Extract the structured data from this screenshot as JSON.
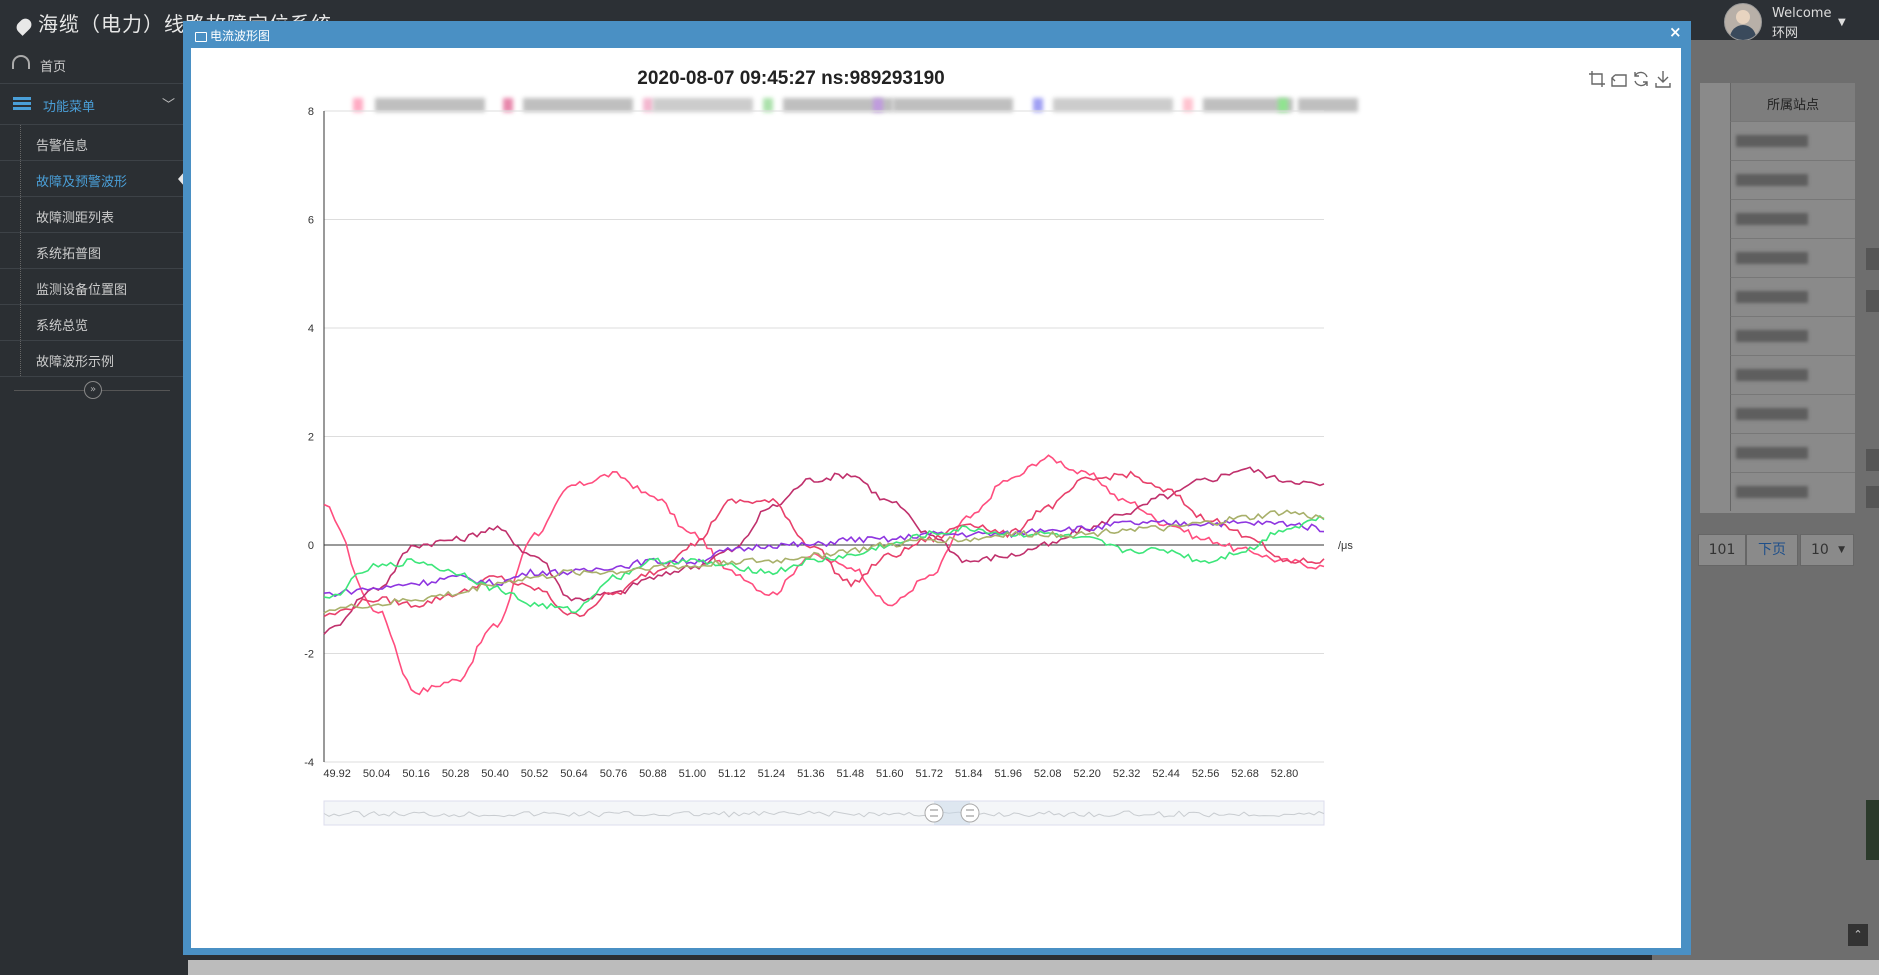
{
  "app": {
    "title": "海缆（电力）线路故障定位系统"
  },
  "user": {
    "welcome": "Welcome",
    "name": "环网"
  },
  "sidebar": {
    "home": "首页",
    "menu": "功能菜单",
    "items": [
      {
        "label": "告警信息"
      },
      {
        "label": "故障及预警波形"
      },
      {
        "label": "故障测距列表"
      },
      {
        "label": "系统拓普图"
      },
      {
        "label": "监测设备位置图"
      },
      {
        "label": "系统总览"
      },
      {
        "label": "故障波形示例"
      }
    ]
  },
  "background_table": {
    "header": "所属站点"
  },
  "pager": {
    "page": "101",
    "next": "下页",
    "page_size": "10"
  },
  "modal": {
    "title": "电流波形图",
    "close": "×"
  },
  "chart_data": {
    "type": "line",
    "title": "2020-08-07 09:45:27  ns:989293190",
    "xlabel": "/μs",
    "ylabel": "",
    "x_ticks": [
      "49.92",
      "50.04",
      "50.16",
      "50.28",
      "50.40",
      "50.52",
      "50.64",
      "50.76",
      "50.88",
      "51.00",
      "51.12",
      "51.24",
      "51.36",
      "51.48",
      "51.60",
      "51.72",
      "51.84",
      "51.96",
      "52.08",
      "52.20",
      "52.32",
      "52.44",
      "52.56",
      "52.68",
      "52.80"
    ],
    "xlim": [
      49.88,
      52.92
    ],
    "ylim": [
      -4,
      8
    ],
    "y_ticks": [
      -4,
      -2,
      0,
      2,
      4,
      6,
      8
    ],
    "grid": true,
    "legend_placement": "top (obscured)",
    "x": [
      49.88,
      50.04,
      50.16,
      50.28,
      50.4,
      50.52,
      50.64,
      50.76,
      50.88,
      51.0,
      51.12,
      51.24,
      51.36,
      51.48,
      51.6,
      51.72,
      51.84,
      51.96,
      52.08,
      52.2,
      52.32,
      52.44,
      52.56,
      52.68,
      52.8,
      52.92
    ],
    "series": [
      {
        "color": "#ff4d7e",
        "values": [
          0.7,
          -1.2,
          -2.7,
          -2.5,
          -1.5,
          0.2,
          1.1,
          1.3,
          0.9,
          0.2,
          -0.5,
          -0.9,
          -0.2,
          -0.4,
          -1.1,
          -0.6,
          0.5,
          1.2,
          1.6,
          1.3,
          0.8,
          0.4,
          0.1,
          -0.1,
          -0.3,
          -0.4
        ]
      },
      {
        "color": "#c0306c",
        "values": [
          -1.6,
          -0.8,
          0.0,
          0.1,
          0.3,
          -0.2,
          -1.0,
          -0.9,
          -0.6,
          -0.4,
          -0.1,
          0.7,
          1.2,
          1.3,
          0.8,
          0.2,
          -0.3,
          -0.2,
          0.0,
          0.3,
          0.6,
          0.9,
          1.2,
          1.4,
          1.2,
          1.1
        ]
      },
      {
        "color": "#e8406a",
        "values": [
          -1.3,
          -1.0,
          -1.1,
          -0.9,
          -0.6,
          -0.8,
          -1.3,
          -0.9,
          -0.5,
          0.0,
          0.8,
          0.8,
          0.0,
          -0.7,
          -0.2,
          0.1,
          0.4,
          0.2,
          0.7,
          1.2,
          1.3,
          1.0,
          0.5,
          0.2,
          -0.3,
          -0.3
        ]
      },
      {
        "color": "#8e35e0",
        "values": [
          -0.9,
          -0.8,
          -0.7,
          -0.6,
          -0.7,
          -0.5,
          -0.5,
          -0.4,
          -0.3,
          -0.3,
          -0.1,
          0.0,
          0.0,
          0.1,
          0.1,
          0.2,
          0.2,
          0.2,
          0.3,
          0.3,
          0.4,
          0.4,
          0.4,
          0.4,
          0.4,
          0.3
        ]
      },
      {
        "color": "#3de67a",
        "values": [
          -1.0,
          -0.4,
          -0.3,
          -0.5,
          -0.8,
          -1.1,
          -1.2,
          -0.6,
          -0.3,
          -0.3,
          -0.4,
          -0.5,
          -0.3,
          -0.2,
          0.0,
          0.2,
          0.3,
          0.2,
          0.2,
          0.1,
          -0.1,
          -0.1,
          -0.3,
          -0.1,
          0.3,
          0.5
        ]
      },
      {
        "color": "#a8b06a",
        "values": [
          -1.2,
          -1.1,
          -1.0,
          -0.9,
          -0.7,
          -0.6,
          -0.5,
          -0.5,
          -0.4,
          -0.4,
          -0.3,
          -0.3,
          -0.2,
          -0.1,
          0.0,
          0.1,
          0.1,
          0.2,
          0.2,
          0.2,
          0.3,
          0.3,
          0.4,
          0.5,
          0.6,
          0.5
        ]
      }
    ]
  }
}
